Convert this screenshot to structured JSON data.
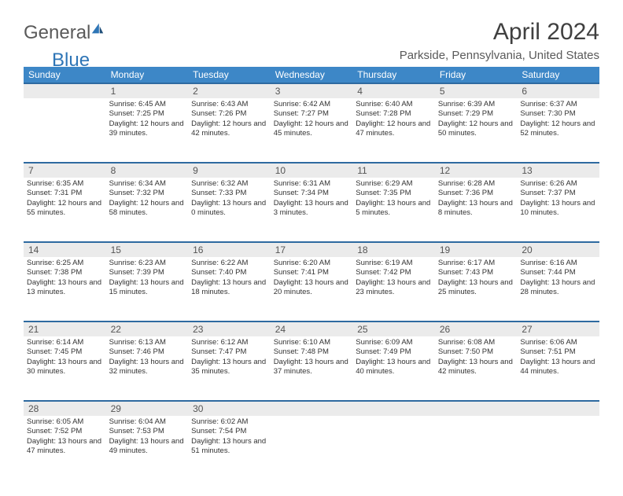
{
  "header": {
    "logo_general": "General",
    "logo_blue": "Blue",
    "month_title": "April 2024",
    "location": "Parkside, Pennsylvania, United States"
  },
  "colors": {
    "header_bg": "#3d87c7",
    "header_border": "#2e6aa0",
    "daynum_bg": "#ebebeb",
    "text": "#333333"
  },
  "day_names": [
    "Sunday",
    "Monday",
    "Tuesday",
    "Wednesday",
    "Thursday",
    "Friday",
    "Saturday"
  ],
  "weeks": [
    {
      "nums": [
        "",
        "1",
        "2",
        "3",
        "4",
        "5",
        "6"
      ],
      "cells": [
        {
          "sunrise": "",
          "sunset": "",
          "daylight": ""
        },
        {
          "sunrise": "Sunrise: 6:45 AM",
          "sunset": "Sunset: 7:25 PM",
          "daylight": "Daylight: 12 hours and 39 minutes."
        },
        {
          "sunrise": "Sunrise: 6:43 AM",
          "sunset": "Sunset: 7:26 PM",
          "daylight": "Daylight: 12 hours and 42 minutes."
        },
        {
          "sunrise": "Sunrise: 6:42 AM",
          "sunset": "Sunset: 7:27 PM",
          "daylight": "Daylight: 12 hours and 45 minutes."
        },
        {
          "sunrise": "Sunrise: 6:40 AM",
          "sunset": "Sunset: 7:28 PM",
          "daylight": "Daylight: 12 hours and 47 minutes."
        },
        {
          "sunrise": "Sunrise: 6:39 AM",
          "sunset": "Sunset: 7:29 PM",
          "daylight": "Daylight: 12 hours and 50 minutes."
        },
        {
          "sunrise": "Sunrise: 6:37 AM",
          "sunset": "Sunset: 7:30 PM",
          "daylight": "Daylight: 12 hours and 52 minutes."
        }
      ]
    },
    {
      "nums": [
        "7",
        "8",
        "9",
        "10",
        "11",
        "12",
        "13"
      ],
      "cells": [
        {
          "sunrise": "Sunrise: 6:35 AM",
          "sunset": "Sunset: 7:31 PM",
          "daylight": "Daylight: 12 hours and 55 minutes."
        },
        {
          "sunrise": "Sunrise: 6:34 AM",
          "sunset": "Sunset: 7:32 PM",
          "daylight": "Daylight: 12 hours and 58 minutes."
        },
        {
          "sunrise": "Sunrise: 6:32 AM",
          "sunset": "Sunset: 7:33 PM",
          "daylight": "Daylight: 13 hours and 0 minutes."
        },
        {
          "sunrise": "Sunrise: 6:31 AM",
          "sunset": "Sunset: 7:34 PM",
          "daylight": "Daylight: 13 hours and 3 minutes."
        },
        {
          "sunrise": "Sunrise: 6:29 AM",
          "sunset": "Sunset: 7:35 PM",
          "daylight": "Daylight: 13 hours and 5 minutes."
        },
        {
          "sunrise": "Sunrise: 6:28 AM",
          "sunset": "Sunset: 7:36 PM",
          "daylight": "Daylight: 13 hours and 8 minutes."
        },
        {
          "sunrise": "Sunrise: 6:26 AM",
          "sunset": "Sunset: 7:37 PM",
          "daylight": "Daylight: 13 hours and 10 minutes."
        }
      ]
    },
    {
      "nums": [
        "14",
        "15",
        "16",
        "17",
        "18",
        "19",
        "20"
      ],
      "cells": [
        {
          "sunrise": "Sunrise: 6:25 AM",
          "sunset": "Sunset: 7:38 PM",
          "daylight": "Daylight: 13 hours and 13 minutes."
        },
        {
          "sunrise": "Sunrise: 6:23 AM",
          "sunset": "Sunset: 7:39 PM",
          "daylight": "Daylight: 13 hours and 15 minutes."
        },
        {
          "sunrise": "Sunrise: 6:22 AM",
          "sunset": "Sunset: 7:40 PM",
          "daylight": "Daylight: 13 hours and 18 minutes."
        },
        {
          "sunrise": "Sunrise: 6:20 AM",
          "sunset": "Sunset: 7:41 PM",
          "daylight": "Daylight: 13 hours and 20 minutes."
        },
        {
          "sunrise": "Sunrise: 6:19 AM",
          "sunset": "Sunset: 7:42 PM",
          "daylight": "Daylight: 13 hours and 23 minutes."
        },
        {
          "sunrise": "Sunrise: 6:17 AM",
          "sunset": "Sunset: 7:43 PM",
          "daylight": "Daylight: 13 hours and 25 minutes."
        },
        {
          "sunrise": "Sunrise: 6:16 AM",
          "sunset": "Sunset: 7:44 PM",
          "daylight": "Daylight: 13 hours and 28 minutes."
        }
      ]
    },
    {
      "nums": [
        "21",
        "22",
        "23",
        "24",
        "25",
        "26",
        "27"
      ],
      "cells": [
        {
          "sunrise": "Sunrise: 6:14 AM",
          "sunset": "Sunset: 7:45 PM",
          "daylight": "Daylight: 13 hours and 30 minutes."
        },
        {
          "sunrise": "Sunrise: 6:13 AM",
          "sunset": "Sunset: 7:46 PM",
          "daylight": "Daylight: 13 hours and 32 minutes."
        },
        {
          "sunrise": "Sunrise: 6:12 AM",
          "sunset": "Sunset: 7:47 PM",
          "daylight": "Daylight: 13 hours and 35 minutes."
        },
        {
          "sunrise": "Sunrise: 6:10 AM",
          "sunset": "Sunset: 7:48 PM",
          "daylight": "Daylight: 13 hours and 37 minutes."
        },
        {
          "sunrise": "Sunrise: 6:09 AM",
          "sunset": "Sunset: 7:49 PM",
          "daylight": "Daylight: 13 hours and 40 minutes."
        },
        {
          "sunrise": "Sunrise: 6:08 AM",
          "sunset": "Sunset: 7:50 PM",
          "daylight": "Daylight: 13 hours and 42 minutes."
        },
        {
          "sunrise": "Sunrise: 6:06 AM",
          "sunset": "Sunset: 7:51 PM",
          "daylight": "Daylight: 13 hours and 44 minutes."
        }
      ]
    },
    {
      "nums": [
        "28",
        "29",
        "30",
        "",
        "",
        "",
        ""
      ],
      "cells": [
        {
          "sunrise": "Sunrise: 6:05 AM",
          "sunset": "Sunset: 7:52 PM",
          "daylight": "Daylight: 13 hours and 47 minutes."
        },
        {
          "sunrise": "Sunrise: 6:04 AM",
          "sunset": "Sunset: 7:53 PM",
          "daylight": "Daylight: 13 hours and 49 minutes."
        },
        {
          "sunrise": "Sunrise: 6:02 AM",
          "sunset": "Sunset: 7:54 PM",
          "daylight": "Daylight: 13 hours and 51 minutes."
        },
        {
          "sunrise": "",
          "sunset": "",
          "daylight": ""
        },
        {
          "sunrise": "",
          "sunset": "",
          "daylight": ""
        },
        {
          "sunrise": "",
          "sunset": "",
          "daylight": ""
        },
        {
          "sunrise": "",
          "sunset": "",
          "daylight": ""
        }
      ]
    }
  ]
}
